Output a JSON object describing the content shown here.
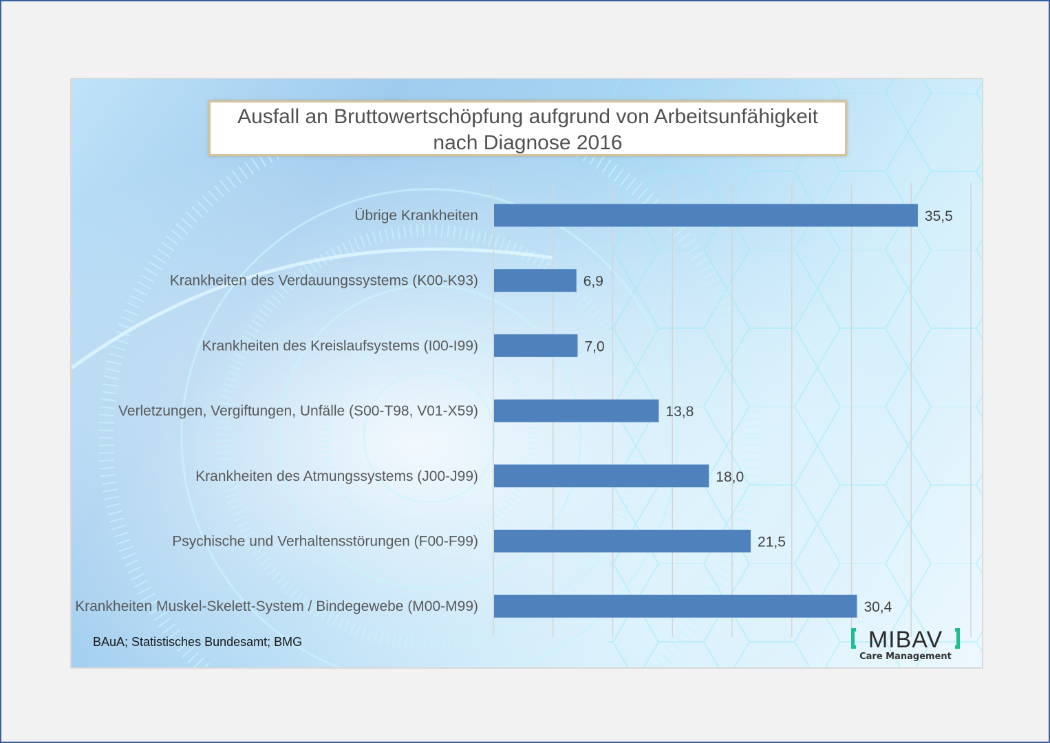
{
  "chart_data": {
    "type": "bar",
    "orientation": "horizontal",
    "title": "Ausfall an Bruttowertschöpfung aufgrund von Arbeitsunfähigkeit nach Diagnose 2016",
    "title_lines": [
      "Ausfall an Bruttowertschöpfung aufgrund von Arbeitsunfähigkeit",
      "nach Diagnose 2016"
    ],
    "xlabel": "",
    "ylabel": "",
    "categories": [
      "Übrige Krankheiten",
      "Krankheiten des Verdauungssystems (K00-K93)",
      "Krankheiten des Kreislaufsystems (I00-I99)",
      "Verletzungen, Vergiftungen, Unfälle (S00-T98, V01-X59)",
      "Krankheiten des Atmungssystems (J00-J99)",
      "Psychische und Verhaltensstörungen (F00-F99)",
      "Krankheiten Muskel-Skelett-System / Bindegewebe (M00-M99)"
    ],
    "values": [
      35.5,
      6.9,
      7.0,
      13.8,
      18.0,
      21.5,
      30.4
    ],
    "data_labels": [
      "35,5",
      "6,9",
      "7,0",
      "13,8",
      "18,0",
      "21,5",
      "30,4"
    ],
    "xlim": [
      0,
      40
    ],
    "gridline_step": 5,
    "grid": true,
    "x_tick_labels_visible": false,
    "legend": "none",
    "bar_color": "#4F81BD"
  },
  "source_text": "BAuA; Statistisches Bundesamt;  BMG",
  "logo": {
    "name": "MIBAV",
    "tagline": "Care Management",
    "bracket_color": "#1DBF8E"
  }
}
